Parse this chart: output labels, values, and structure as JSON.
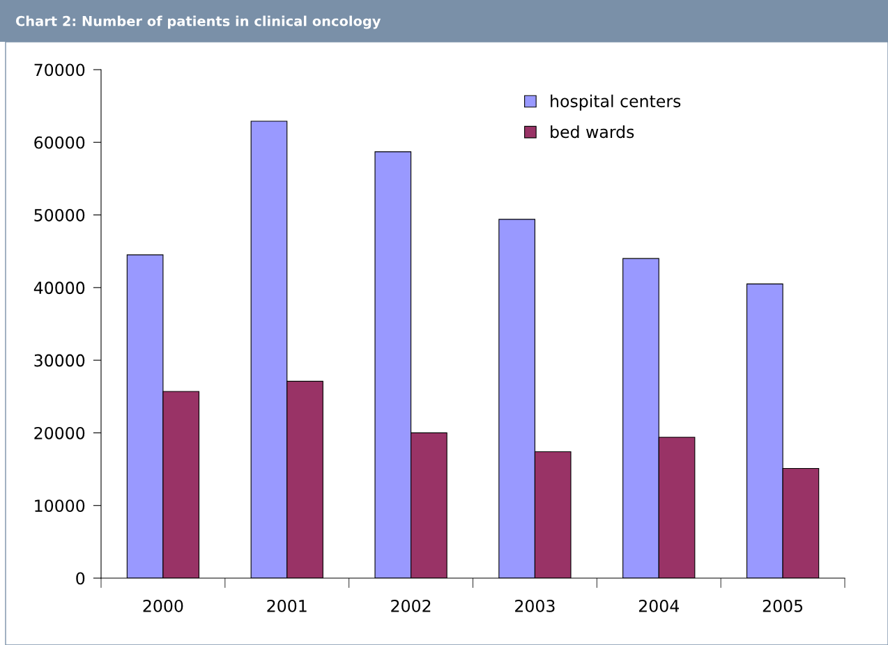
{
  "chart_data": {
    "type": "bar",
    "title": "Chart 2: Number of patients in clinical oncology",
    "categories": [
      "2000",
      "2001",
      "2002",
      "2003",
      "2004",
      "2005"
    ],
    "series": [
      {
        "name": "hospital centers",
        "color": "#9999ff",
        "values": [
          44500,
          62900,
          58700,
          49400,
          44000,
          40500
        ]
      },
      {
        "name": "bed wards",
        "color": "#993366",
        "values": [
          25700,
          27100,
          20000,
          17400,
          19400,
          15100
        ]
      }
    ],
    "ylim": [
      0,
      70000
    ],
    "yticks": [
      0,
      10000,
      20000,
      30000,
      40000,
      50000,
      60000,
      70000
    ],
    "grid": false,
    "legend": "top right"
  }
}
